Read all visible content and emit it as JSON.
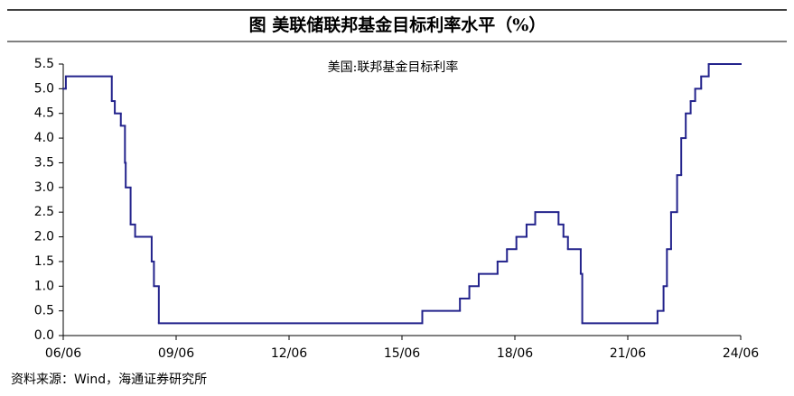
{
  "chart_data": {
    "type": "step-line",
    "title": "图  美联储联邦基金目标利率水平（%）",
    "source": "资料来源：Wind，海通证券研究所",
    "series": [
      {
        "name": "美国:联邦基金目标利率",
        "color": "#23238c",
        "x": [
          2006.42,
          2006.49,
          2007.71,
          2007.79,
          2007.95,
          2008.06,
          2008.08,
          2008.21,
          2008.33,
          2008.77,
          2008.83,
          2008.96,
          2015.96,
          2016.96,
          2017.21,
          2017.46,
          2017.96,
          2018.21,
          2018.46,
          2018.73,
          2018.96,
          2019.58,
          2019.71,
          2019.83,
          2020.17,
          2020.21,
          2022.21,
          2022.37,
          2022.46,
          2022.57,
          2022.73,
          2022.84,
          2022.96,
          2023.09,
          2023.21,
          2023.37,
          2023.57
        ],
        "values": [
          5.0,
          5.25,
          4.75,
          4.5,
          4.25,
          3.5,
          3.0,
          2.25,
          2.0,
          1.5,
          1.0,
          0.25,
          0.5,
          0.75,
          1.0,
          1.25,
          1.5,
          1.75,
          2.0,
          2.25,
          2.5,
          2.25,
          2.0,
          1.75,
          1.25,
          0.25,
          0.5,
          1.0,
          1.75,
          2.5,
          3.25,
          4.0,
          4.5,
          4.75,
          5.0,
          5.25,
          5.5
        ]
      }
    ],
    "xlim": [
      2006.42,
      2024.42
    ],
    "xticks": [
      {
        "value": 2006.42,
        "label": "06/06"
      },
      {
        "value": 2009.42,
        "label": "09/06"
      },
      {
        "value": 2012.42,
        "label": "12/06"
      },
      {
        "value": 2015.42,
        "label": "15/06"
      },
      {
        "value": 2018.42,
        "label": "18/06"
      },
      {
        "value": 2021.42,
        "label": "21/06"
      },
      {
        "value": 2024.42,
        "label": "24/06"
      }
    ],
    "ylim": [
      0,
      5.5
    ],
    "yticks": [
      {
        "value": 0,
        "label": "0.0"
      },
      {
        "value": 0.5,
        "label": "0.5"
      },
      {
        "value": 1,
        "label": "1.0"
      },
      {
        "value": 1.5,
        "label": "1.5"
      },
      {
        "value": 2,
        "label": "2.0"
      },
      {
        "value": 2.5,
        "label": "2.5"
      },
      {
        "value": 3,
        "label": "3.0"
      },
      {
        "value": 3.5,
        "label": "3.5"
      },
      {
        "value": 4,
        "label": "4.0"
      },
      {
        "value": 4.5,
        "label": "4.5"
      },
      {
        "value": 5,
        "label": "5.0"
      },
      {
        "value": 5.5,
        "label": "5.5"
      }
    ]
  }
}
